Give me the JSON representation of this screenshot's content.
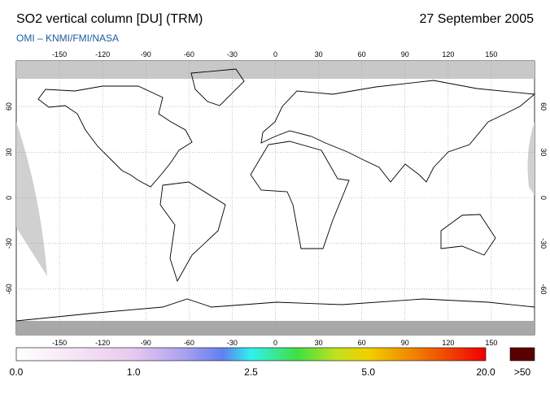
{
  "header": {
    "title": "SO2 vertical column [DU] (TRM)",
    "date": "27 September 2005",
    "subtitle": "OMI  –  KNMI/FMI/NASA"
  },
  "map": {
    "xlim": [
      -180,
      180
    ],
    "ylim": [
      -90,
      90
    ],
    "xticks": [
      -150,
      -120,
      -90,
      -60,
      -30,
      0,
      30,
      60,
      90,
      120,
      150
    ],
    "yticks": [
      -60,
      -30,
      0,
      30,
      60
    ]
  },
  "colorbar": {
    "labels": [
      "0.0",
      "1.0",
      "2.5",
      "5.0",
      "20.0"
    ],
    "overflow_label": ">50"
  }
}
